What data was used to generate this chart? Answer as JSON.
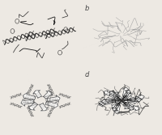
{
  "background_color": "#ede9e3",
  "fig_width": 2.0,
  "fig_height": 1.67,
  "dpi": 100,
  "labels": {
    "top_right": "b",
    "bottom_right": "d"
  },
  "label_fontsize": 6,
  "label_color": "#444444",
  "dark": "#1a1a1a",
  "mid": "#555555",
  "light": "#999999",
  "vlight": "#bbbbbb"
}
